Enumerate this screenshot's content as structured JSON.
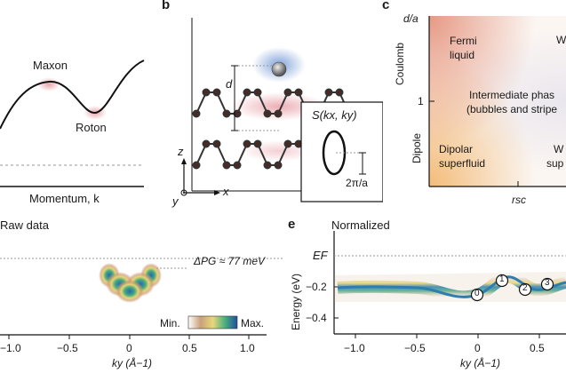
{
  "panel_a": {
    "maxon_label": "Maxon",
    "roton_label": "Roton",
    "xlabel": "Momentum, k"
  },
  "panel_b": {
    "letter": "b",
    "d_label": "d",
    "axis_z": "z",
    "axis_x": "x",
    "axis_y": "y",
    "inset_title": "S(kx, ky)",
    "inset_scale": "2π/a"
  },
  "panel_c": {
    "letter": "c",
    "y_title": "d/a",
    "y_coulomb": "Coulomb",
    "y_one": "1",
    "y_dipole": "Dipole",
    "fermi_liquid": "Fermi\nliquid",
    "intermediate": "Intermediate phas\n(bubbles and stripe",
    "dipolar": "Dipolar\nsuperfluid",
    "right_top": "W",
    "right_bottom": "W\nsup",
    "x_label": "rsc"
  },
  "panel_d": {
    "title": "Raw data",
    "pg_label": "ΔPG ≈ 77 meV",
    "colorbar_min": "Min.",
    "colorbar_max": "Max.",
    "xlabel": "ky (Å−1)",
    "xticks": [
      "−1.0",
      "−0.5",
      "0",
      "0.5",
      "1.0"
    ]
  },
  "panel_e": {
    "letter": "e",
    "title": "Normalized",
    "ylabel": "Energy (eV)",
    "ef_label": "EF",
    "yticks": [
      "−0.2",
      "−0.4"
    ],
    "xticks": [
      "−1.0",
      "−0.5",
      "0",
      "0.5"
    ],
    "xlabel": "ky (Å−1)",
    "markers": [
      "0",
      "1",
      "2",
      "3"
    ]
  },
  "colors": {
    "maxon_glow": "#e8a0a8",
    "electron_glow": "#7b9fd8",
    "fermi_corner": "#e07a5f",
    "superfluid_corner": "#f2b66d",
    "band_core": "#2e7db0"
  }
}
